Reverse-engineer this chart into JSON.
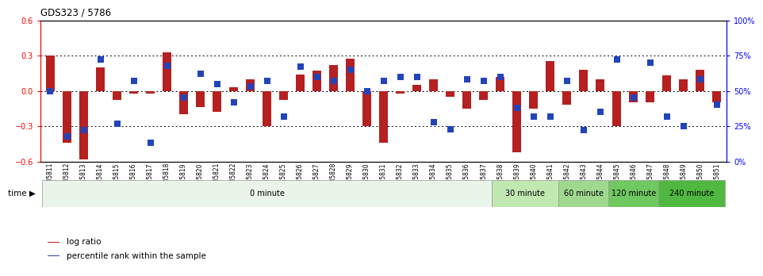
{
  "title": "GDS323 / 5786",
  "samples": [
    "GSM5811",
    "GSM5812",
    "GSM5813",
    "GSM5814",
    "GSM5815",
    "GSM5816",
    "GSM5817",
    "GSM5818",
    "GSM5819",
    "GSM5820",
    "GSM5821",
    "GSM5822",
    "GSM5823",
    "GSM5824",
    "GSM5825",
    "GSM5826",
    "GSM5827",
    "GSM5828",
    "GSM5829",
    "GSM5830",
    "GSM5831",
    "GSM5832",
    "GSM5833",
    "GSM5834",
    "GSM5835",
    "GSM5836",
    "GSM5837",
    "GSM5838",
    "GSM5839",
    "GSM5840",
    "GSM5841",
    "GSM5842",
    "GSM5843",
    "GSM5844",
    "GSM5845",
    "GSM5846",
    "GSM5847",
    "GSM5848",
    "GSM5849",
    "GSM5850",
    "GSM5851"
  ],
  "log_ratio": [
    0.3,
    -0.44,
    -0.58,
    0.2,
    -0.08,
    -0.02,
    -0.02,
    0.33,
    -0.2,
    -0.14,
    -0.18,
    0.03,
    0.1,
    -0.3,
    -0.08,
    0.14,
    0.17,
    0.22,
    0.27,
    -0.3,
    -0.44,
    -0.02,
    0.05,
    0.1,
    -0.05,
    -0.15,
    -0.08,
    0.12,
    -0.52,
    -0.15,
    0.25,
    -0.12,
    0.18,
    0.1,
    -0.3,
    -0.1,
    -0.1,
    0.13,
    0.1,
    0.18,
    -0.1
  ],
  "percentile": [
    50,
    18,
    22,
    72,
    27,
    57,
    13,
    68,
    45,
    62,
    55,
    42,
    53,
    57,
    32,
    67,
    60,
    57,
    65,
    50,
    57,
    60,
    60,
    28,
    23,
    58,
    57,
    60,
    38,
    32,
    32,
    57,
    22,
    35,
    72,
    45,
    70,
    32,
    25,
    58,
    40
  ],
  "bar_color": "#b52020",
  "dot_color": "#2244bb",
  "ylim_left": [
    -0.6,
    0.6
  ],
  "ylim_right": [
    0,
    100
  ],
  "yticks_left": [
    -0.6,
    -0.3,
    0.0,
    0.3,
    0.6
  ],
  "yticks_right": [
    0,
    25,
    50,
    75,
    100
  ],
  "ytick_labels_right": [
    "0%",
    "25%",
    "50%",
    "75%",
    "100%"
  ],
  "hlines": [
    0.3,
    0.0,
    -0.3
  ],
  "time_groups": [
    {
      "label": "0 minute",
      "start": 0,
      "end": 27,
      "color": "#e8f5e8"
    },
    {
      "label": "30 minute",
      "start": 27,
      "end": 31,
      "color": "#c0e8b0"
    },
    {
      "label": "60 minute",
      "start": 31,
      "end": 34,
      "color": "#a0d890"
    },
    {
      "label": "120 minute",
      "start": 34,
      "end": 37,
      "color": "#70c860"
    },
    {
      "label": "240 minute",
      "start": 37,
      "end": 41,
      "color": "#50b840"
    }
  ],
  "legend_items": [
    {
      "label": "log ratio",
      "color": "#b52020"
    },
    {
      "label": "percentile rank within the sample",
      "color": "#2244bb"
    }
  ]
}
